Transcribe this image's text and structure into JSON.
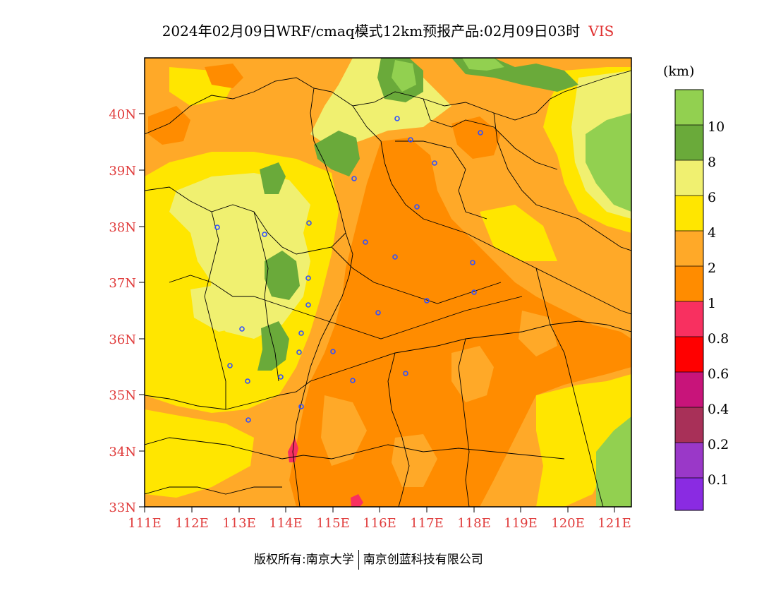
{
  "title": {
    "main": "2024年02月09日WRF/cmaq模式12km预报产品:02月09日03时",
    "variable": "VIS"
  },
  "map": {
    "lat_labels": [
      "40N",
      "39N",
      "38N",
      "37N",
      "36N",
      "35N",
      "34N",
      "33N"
    ],
    "lon_labels": [
      "111E",
      "112E",
      "113E",
      "114E",
      "115E",
      "116E",
      "117E",
      "118E",
      "119E",
      "120E",
      "121E"
    ],
    "axis_color": "#e03c3c"
  },
  "legend": {
    "unit": "(km)",
    "tick_labels": [
      "10",
      "8",
      "6",
      "4",
      "2",
      "1",
      "0.8",
      "0.6",
      "0.4",
      "0.2",
      "0.1"
    ],
    "colors": [
      "#92d050",
      "#6aaa3a",
      "#f0f070",
      "#ffe600",
      "#ffa928",
      "#ff8c00",
      "#f83060",
      "#ff0000",
      "#c8147a",
      "#a83058",
      "#9a38c8",
      "#8a2be2"
    ]
  },
  "footer": {
    "left": "版权所有:南京大学",
    "right": "南京创蓝科技有限公司"
  }
}
